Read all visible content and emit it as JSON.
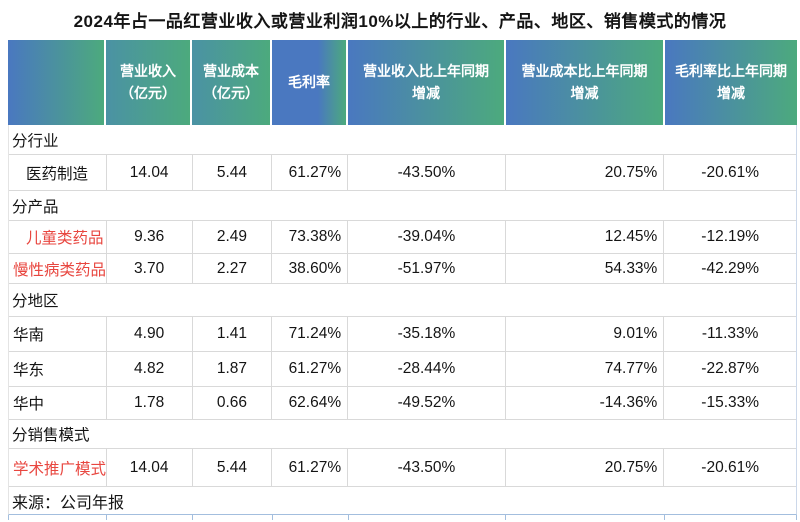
{
  "title_bar": {
    "title": "2024年占一品红营业收入或营业利润10%以上的行业、产品、地区、销售模式的情况"
  },
  "colors": {
    "header_gradient_blue": "#4a78c0",
    "header_gradient_green": "#4caa7d",
    "header_gradient_teal": "#4b92a4",
    "header_text": "#ffffff",
    "highlight_red": "#e8463f",
    "grid_line": "#d9d9d9",
    "outer_line": "#a3bede"
  },
  "chart_data": {
    "type": "table",
    "title": "2024年占一品红营业收入或营业利润10%以上的行业、产品、地区、销售模式的情况",
    "columns": [
      "",
      "营业收入\n（亿元）",
      "营业成本\n（亿元）",
      "毛利率",
      "营业收入比上年同期\n增减",
      "营业成本比上年同期\n增减",
      "毛利率比上年同期\n增减"
    ],
    "column_names": [
      "row-label",
      "revenue",
      "operating-cost",
      "gross-margin",
      "revenue-yoy-change",
      "cost-yoy-change",
      "margin-yoy-change"
    ],
    "rows": [
      {
        "kind": "section",
        "label": "分行业"
      },
      {
        "kind": "data",
        "label": "医药制造",
        "indent": true,
        "red": false,
        "values": [
          "14.04",
          "5.44",
          "61.27%",
          "-43.50%",
          "20.75%",
          "-20.61%"
        ]
      },
      {
        "kind": "section",
        "label": "分产品"
      },
      {
        "kind": "data",
        "label": "儿童类药品",
        "indent": true,
        "red": true,
        "values": [
          "9.36",
          "2.49",
          "73.38%",
          "-39.04%",
          "12.45%",
          "-12.19%"
        ]
      },
      {
        "kind": "data",
        "label": "慢性病类药品",
        "indent": false,
        "red": true,
        "values": [
          "3.70",
          "2.27",
          "38.60%",
          "-51.97%",
          "54.33%",
          "-42.29%"
        ]
      },
      {
        "kind": "section",
        "label": "分地区"
      },
      {
        "kind": "data",
        "label": "华南",
        "indent": false,
        "red": false,
        "values": [
          "4.90",
          "1.41",
          "71.24%",
          "-35.18%",
          "9.01%",
          "-11.33%"
        ]
      },
      {
        "kind": "data",
        "label": "华东",
        "indent": false,
        "red": false,
        "values": [
          "4.82",
          "1.87",
          "61.27%",
          "-28.44%",
          "74.77%",
          "-22.87%"
        ]
      },
      {
        "kind": "data",
        "label": "华中",
        "indent": false,
        "red": false,
        "values": [
          "1.78",
          "0.66",
          "62.64%",
          "-49.52%",
          "-14.36%",
          "-15.33%"
        ]
      },
      {
        "kind": "section",
        "label": "分销售模式"
      },
      {
        "kind": "data",
        "label": "学术推广模式",
        "indent": false,
        "red": true,
        "values": [
          "14.04",
          "5.44",
          "61.27%",
          "-43.50%",
          "20.75%",
          "-20.61%"
        ]
      }
    ],
    "source": "来源：公司年报"
  }
}
